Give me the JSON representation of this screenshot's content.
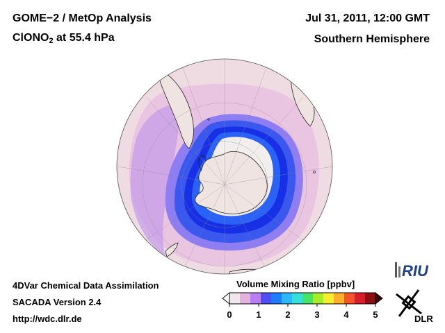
{
  "header": {
    "title_line1": "GOME−2 / MetOp Analysis",
    "species_main": "ClONO",
    "species_sub": "2",
    "species_suffix": " at 55.4 hPa",
    "date": "Jul 31, 2011, 12:00 GMT",
    "hemisphere": "Southern Hemisphere"
  },
  "footer": {
    "line1": "4DVar Chemical Data Assimilation",
    "line2": "SACADA Version 2.4",
    "line3": "http://wdc.dlr.de"
  },
  "colorbar": {
    "title": "Volume Mixing Ratio [ppbv]",
    "ticks": [
      "0",
      "1",
      "2",
      "3",
      "4",
      "5"
    ],
    "colors": [
      "#f1e6ec",
      "#e4b2df",
      "#b67ef0",
      "#4f4df4",
      "#1e7cff",
      "#2ab8ff",
      "#36e0d9",
      "#45e468",
      "#a5ec2c",
      "#f7ef2e",
      "#fbaf2a",
      "#f3542b",
      "#d81d2b",
      "#8a1014"
    ]
  },
  "logos": {
    "riu": "RIU",
    "dlr": "DLR"
  },
  "map": {
    "land_color": "#efe4e2",
    "ocean_base_color": "#efdce3",
    "pink_band_color": "#dca8df",
    "purple_color": "#a47aee",
    "blue_color": "#3a57ee",
    "deep_blue_color": "#1730e6",
    "core_color": "#f3eeee"
  }
}
